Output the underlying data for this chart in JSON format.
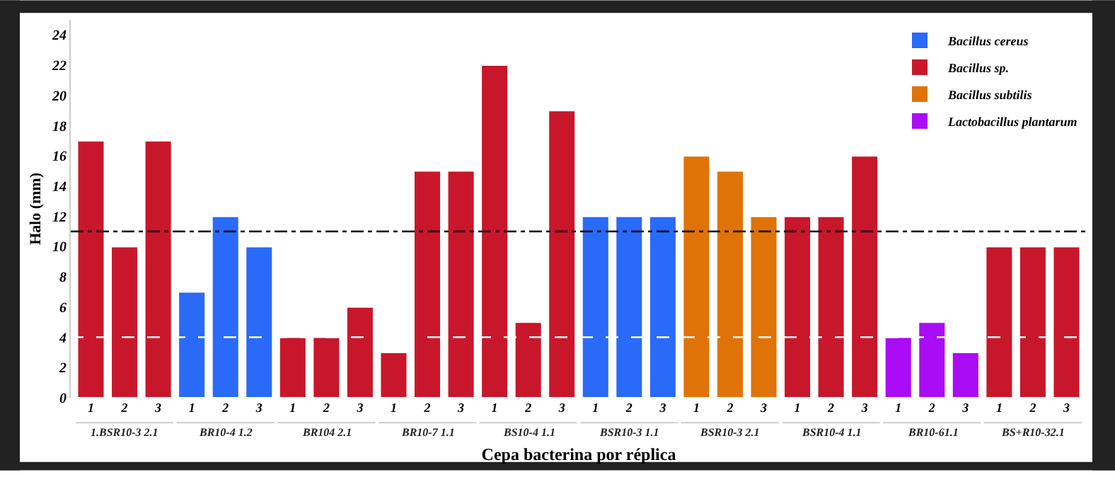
{
  "chart_data": {
    "type": "bar",
    "xlabel": "Cepa bacterina por réplica",
    "ylabel": "Halo (mm)",
    "categories": [
      "1",
      "2",
      "3",
      "1",
      "2",
      "3",
      "1",
      "2",
      "3",
      "1",
      "2",
      "3",
      "1",
      "2",
      "3",
      "1",
      "2",
      "3",
      "1",
      "2",
      "3",
      "1",
      "2",
      "3",
      "1",
      "2",
      "3",
      "1",
      "2",
      "3"
    ],
    "series": [
      {
        "name": "Bacillus cereus",
        "color": "#2a6af8",
        "values": [
          null,
          null,
          null,
          7,
          12,
          10,
          null,
          null,
          null,
          null,
          null,
          null,
          null,
          null,
          null,
          12,
          12,
          12,
          null,
          null,
          null,
          null,
          null,
          null,
          null,
          null,
          null,
          null,
          null,
          null
        ]
      },
      {
        "name": "Bacillus sp.",
        "color": "#c8172b",
        "values": [
          17,
          10,
          17,
          null,
          null,
          null,
          4,
          4,
          6,
          3,
          15,
          15,
          22,
          5,
          19,
          null,
          null,
          null,
          null,
          null,
          null,
          12,
          12,
          16,
          null,
          null,
          null,
          10,
          10,
          10
        ]
      },
      {
        "name": "Bacillus subtilis",
        "color": "#e07308",
        "values": [
          null,
          null,
          null,
          null,
          null,
          null,
          null,
          null,
          null,
          null,
          null,
          null,
          null,
          null,
          null,
          null,
          null,
          null,
          16,
          15,
          12,
          null,
          null,
          null,
          null,
          null,
          null,
          null,
          null,
          null
        ]
      },
      {
        "name": "Lactobacillus plantarum",
        "color": "#aa0cf5",
        "values": [
          null,
          null,
          null,
          null,
          null,
          null,
          null,
          null,
          null,
          null,
          null,
          null,
          null,
          null,
          null,
          null,
          null,
          null,
          null,
          null,
          null,
          null,
          null,
          null,
          4,
          5,
          3,
          null,
          null,
          null
        ]
      }
    ],
    "annotations": [
      "1.BSR10-3 2.1",
      "BR10-4 1.2",
      "BR104 2.1",
      "BR10-7 1.1",
      "BS10-4 1.1",
      "BSR10-3 1.1",
      "BSR10-3 2.1",
      "BSR10-4 1.1",
      "BR10-61.1",
      "BS+R10-32.1"
    ],
    "ref_lines": [
      {
        "axis": "y",
        "value": 11,
        "color": "#000000",
        "line_style": "dashdot"
      },
      {
        "axis": "y",
        "value": 4,
        "color": "#ffffff",
        "line_style": "dashed"
      }
    ],
    "ylim": [
      0,
      25
    ],
    "yticks": [
      0,
      2,
      4,
      6,
      8,
      10,
      12,
      14,
      16,
      18,
      20,
      22,
      24
    ],
    "legend": "top right"
  }
}
